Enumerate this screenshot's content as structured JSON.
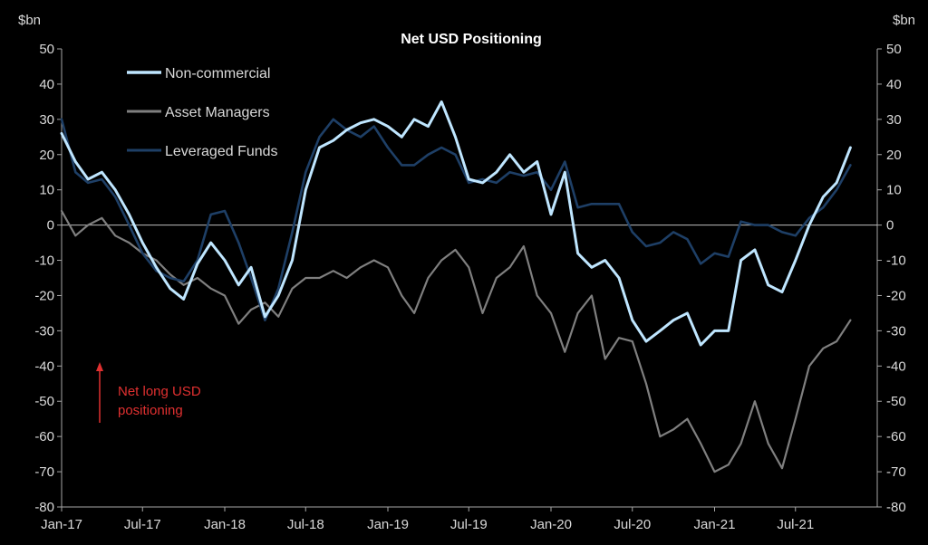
{
  "chart_data": {
    "type": "line",
    "title": "Net USD Positioning",
    "ylabel_left": "$bn",
    "ylabel_right": "$bn",
    "ylim": [
      -80,
      50
    ],
    "yticks": [
      50,
      40,
      30,
      20,
      10,
      0,
      -10,
      -20,
      -30,
      -40,
      -50,
      -60,
      -70,
      -80
    ],
    "xlim": [
      "2017-01-01",
      "2021-12-31"
    ],
    "xticks": [
      {
        "date": "2017-01-01",
        "label": "Jan-17"
      },
      {
        "date": "2017-07-01",
        "label": "Jul-17"
      },
      {
        "date": "2018-01-01",
        "label": "Jan-18"
      },
      {
        "date": "2018-07-01",
        "label": "Jul-18"
      },
      {
        "date": "2019-01-01",
        "label": "Jan-19"
      },
      {
        "date": "2019-07-01",
        "label": "Jul-19"
      },
      {
        "date": "2020-01-01",
        "label": "Jan-20"
      },
      {
        "date": "2020-07-01",
        "label": "Jul-20"
      },
      {
        "date": "2021-01-01",
        "label": "Jan-21"
      },
      {
        "date": "2021-07-01",
        "label": "Jul-21"
      }
    ],
    "legend_position": "top-left",
    "annotation": {
      "text_lines": [
        "Net long USD",
        "positioning"
      ],
      "color": "#e03030",
      "arrow": "up"
    },
    "series": [
      {
        "name": "Non-commercial",
        "color": "#bfe6ff",
        "points": [
          [
            "2017-01-01",
            26
          ],
          [
            "2017-02-01",
            18
          ],
          [
            "2017-03-01",
            13
          ],
          [
            "2017-04-01",
            15
          ],
          [
            "2017-05-01",
            10
          ],
          [
            "2017-06-01",
            3
          ],
          [
            "2017-07-01",
            -5
          ],
          [
            "2017-08-01",
            -12
          ],
          [
            "2017-09-01",
            -18
          ],
          [
            "2017-10-01",
            -21
          ],
          [
            "2017-11-01",
            -11
          ],
          [
            "2017-12-01",
            -5
          ],
          [
            "2018-01-01",
            -10
          ],
          [
            "2018-02-01",
            -17
          ],
          [
            "2018-03-01",
            -12
          ],
          [
            "2018-04-01",
            -26
          ],
          [
            "2018-05-01",
            -20
          ],
          [
            "2018-06-01",
            -10
          ],
          [
            "2018-07-01",
            10
          ],
          [
            "2018-08-01",
            22
          ],
          [
            "2018-09-01",
            24
          ],
          [
            "2018-10-01",
            27
          ],
          [
            "2018-11-01",
            29
          ],
          [
            "2018-12-01",
            30
          ],
          [
            "2019-01-01",
            28
          ],
          [
            "2019-02-01",
            25
          ],
          [
            "2019-03-01",
            30
          ],
          [
            "2019-04-01",
            28
          ],
          [
            "2019-05-01",
            35
          ],
          [
            "2019-06-01",
            25
          ],
          [
            "2019-07-01",
            13
          ],
          [
            "2019-08-01",
            12
          ],
          [
            "2019-09-01",
            15
          ],
          [
            "2019-10-01",
            20
          ],
          [
            "2019-11-01",
            15
          ],
          [
            "2019-12-01",
            18
          ],
          [
            "2020-01-01",
            3
          ],
          [
            "2020-02-01",
            15
          ],
          [
            "2020-03-01",
            -8
          ],
          [
            "2020-04-01",
            -12
          ],
          [
            "2020-05-01",
            -10
          ],
          [
            "2020-06-01",
            -15
          ],
          [
            "2020-07-01",
            -27
          ],
          [
            "2020-08-01",
            -33
          ],
          [
            "2020-09-01",
            -30
          ],
          [
            "2020-10-01",
            -27
          ],
          [
            "2020-11-01",
            -25
          ],
          [
            "2020-12-01",
            -34
          ],
          [
            "2021-01-01",
            -30
          ],
          [
            "2021-02-01",
            -30
          ],
          [
            "2021-03-01",
            -10
          ],
          [
            "2021-04-01",
            -7
          ],
          [
            "2021-05-01",
            -17
          ],
          [
            "2021-06-01",
            -19
          ],
          [
            "2021-07-01",
            -10
          ],
          [
            "2021-08-01",
            0
          ],
          [
            "2021-09-01",
            8
          ],
          [
            "2021-10-01",
            12
          ],
          [
            "2021-11-01",
            22
          ]
        ]
      },
      {
        "name": "Asset Managers",
        "color": "#7f7f7f",
        "points": [
          [
            "2017-01-01",
            4
          ],
          [
            "2017-02-01",
            -3
          ],
          [
            "2017-03-01",
            0
          ],
          [
            "2017-04-01",
            2
          ],
          [
            "2017-05-01",
            -3
          ],
          [
            "2017-06-01",
            -5
          ],
          [
            "2017-07-01",
            -8
          ],
          [
            "2017-08-01",
            -10
          ],
          [
            "2017-09-01",
            -14
          ],
          [
            "2017-10-01",
            -17
          ],
          [
            "2017-11-01",
            -15
          ],
          [
            "2017-12-01",
            -18
          ],
          [
            "2018-01-01",
            -20
          ],
          [
            "2018-02-01",
            -28
          ],
          [
            "2018-03-01",
            -24
          ],
          [
            "2018-04-01",
            -22
          ],
          [
            "2018-05-01",
            -26
          ],
          [
            "2018-06-01",
            -18
          ],
          [
            "2018-07-01",
            -15
          ],
          [
            "2018-08-01",
            -15
          ],
          [
            "2018-09-01",
            -13
          ],
          [
            "2018-10-01",
            -15
          ],
          [
            "2018-11-01",
            -12
          ],
          [
            "2018-12-01",
            -10
          ],
          [
            "2019-01-01",
            -12
          ],
          [
            "2019-02-01",
            -20
          ],
          [
            "2019-03-01",
            -25
          ],
          [
            "2019-04-01",
            -15
          ],
          [
            "2019-05-01",
            -10
          ],
          [
            "2019-06-01",
            -7
          ],
          [
            "2019-07-01",
            -12
          ],
          [
            "2019-08-01",
            -25
          ],
          [
            "2019-09-01",
            -15
          ],
          [
            "2019-10-01",
            -12
          ],
          [
            "2019-11-01",
            -6
          ],
          [
            "2019-12-01",
            -20
          ],
          [
            "2020-01-01",
            -25
          ],
          [
            "2020-02-01",
            -36
          ],
          [
            "2020-03-01",
            -25
          ],
          [
            "2020-04-01",
            -20
          ],
          [
            "2020-05-01",
            -38
          ],
          [
            "2020-06-01",
            -32
          ],
          [
            "2020-07-01",
            -33
          ],
          [
            "2020-08-01",
            -45
          ],
          [
            "2020-09-01",
            -60
          ],
          [
            "2020-10-01",
            -58
          ],
          [
            "2020-11-01",
            -55
          ],
          [
            "2020-12-01",
            -62
          ],
          [
            "2021-01-01",
            -70
          ],
          [
            "2021-02-01",
            -68
          ],
          [
            "2021-03-01",
            -62
          ],
          [
            "2021-04-01",
            -50
          ],
          [
            "2021-05-01",
            -62
          ],
          [
            "2021-06-01",
            -69
          ],
          [
            "2021-07-01",
            -55
          ],
          [
            "2021-08-01",
            -40
          ],
          [
            "2021-09-01",
            -35
          ],
          [
            "2021-10-01",
            -33
          ],
          [
            "2021-11-01",
            -27
          ]
        ]
      },
      {
        "name": "Leveraged Funds",
        "color": "#1e3f66",
        "points": [
          [
            "2017-01-01",
            30
          ],
          [
            "2017-02-01",
            15
          ],
          [
            "2017-03-01",
            12
          ],
          [
            "2017-04-01",
            13
          ],
          [
            "2017-05-01",
            8
          ],
          [
            "2017-06-01",
            0
          ],
          [
            "2017-07-01",
            -8
          ],
          [
            "2017-08-01",
            -13
          ],
          [
            "2017-09-01",
            -15
          ],
          [
            "2017-10-01",
            -16
          ],
          [
            "2017-11-01",
            -10
          ],
          [
            "2017-12-01",
            3
          ],
          [
            "2018-01-01",
            4
          ],
          [
            "2018-02-01",
            -5
          ],
          [
            "2018-03-01",
            -15
          ],
          [
            "2018-04-01",
            -27
          ],
          [
            "2018-05-01",
            -18
          ],
          [
            "2018-06-01",
            -2
          ],
          [
            "2018-07-01",
            15
          ],
          [
            "2018-08-01",
            25
          ],
          [
            "2018-09-01",
            30
          ],
          [
            "2018-10-01",
            27
          ],
          [
            "2018-11-01",
            25
          ],
          [
            "2018-12-01",
            28
          ],
          [
            "2019-01-01",
            22
          ],
          [
            "2019-02-01",
            17
          ],
          [
            "2019-03-01",
            17
          ],
          [
            "2019-04-01",
            20
          ],
          [
            "2019-05-01",
            22
          ],
          [
            "2019-06-01",
            20
          ],
          [
            "2019-07-01",
            12
          ],
          [
            "2019-08-01",
            13
          ],
          [
            "2019-09-01",
            12
          ],
          [
            "2019-10-01",
            15
          ],
          [
            "2019-11-01",
            14
          ],
          [
            "2019-12-01",
            15
          ],
          [
            "2020-01-01",
            10
          ],
          [
            "2020-02-01",
            18
          ],
          [
            "2020-03-01",
            5
          ],
          [
            "2020-04-01",
            6
          ],
          [
            "2020-05-01",
            6
          ],
          [
            "2020-06-01",
            6
          ],
          [
            "2020-07-01",
            -2
          ],
          [
            "2020-08-01",
            -6
          ],
          [
            "2020-09-01",
            -5
          ],
          [
            "2020-10-01",
            -2
          ],
          [
            "2020-11-01",
            -4
          ],
          [
            "2020-12-01",
            -11
          ],
          [
            "2021-01-01",
            -8
          ],
          [
            "2021-02-01",
            -9
          ],
          [
            "2021-03-01",
            1
          ],
          [
            "2021-04-01",
            0
          ],
          [
            "2021-05-01",
            0
          ],
          [
            "2021-06-01",
            -2
          ],
          [
            "2021-07-01",
            -3
          ],
          [
            "2021-08-01",
            2
          ],
          [
            "2021-09-01",
            5
          ],
          [
            "2021-10-01",
            10
          ],
          [
            "2021-11-01",
            17
          ]
        ]
      }
    ]
  }
}
